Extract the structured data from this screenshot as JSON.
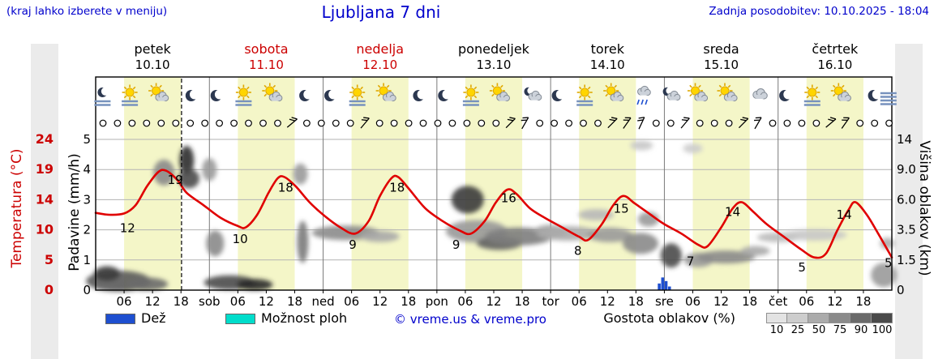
{
  "header": {
    "hint": "(kraj lahko izberete v meniju)",
    "title": "Ljubljana 7 dni",
    "updated": "Zadnja posodobitev: 10.10.2025 - 18:04"
  },
  "colors_ui": {
    "accent_blue": "#0000cc",
    "weekend_red": "#cc0000"
  },
  "days": [
    {
      "name": "petek",
      "date": "10.10",
      "color": "#000000"
    },
    {
      "name": "sobota",
      "date": "11.10",
      "color": "#cc0000"
    },
    {
      "name": "nedelja",
      "date": "12.10",
      "color": "#cc0000"
    },
    {
      "name": "ponedeljek",
      "date": "13.10",
      "color": "#000000"
    },
    {
      "name": "torek",
      "date": "14.10",
      "color": "#000000"
    },
    {
      "name": "sreda",
      "date": "15.10",
      "color": "#000000"
    },
    {
      "name": "četrtek",
      "date": "16.10",
      "color": "#000000"
    }
  ],
  "axes": {
    "temp_label": "Temperatura (°C)",
    "temp_ticks": [
      "24",
      "19",
      "14",
      "10",
      "5",
      "0"
    ],
    "precip_label": "Padavine (mm/h)",
    "precip_ticks": [
      "5",
      "4",
      "3",
      "2",
      "1",
      "0"
    ],
    "cloud_label": "Višina oblakov (km)",
    "cloud_ticks": [
      "14",
      "9.0",
      "6.0",
      "3.5",
      "1.5",
      "0"
    ]
  },
  "legend": {
    "rain": "Dež",
    "rain_color": "#1e4fd0",
    "showers": "Možnost ploh",
    "showers_color": "#00ddcb",
    "copyright": "© vreme.us & vreme.pro",
    "cloud_density": "Gostota oblakov (%)",
    "cloud_scale": [
      {
        "v": "10",
        "c": "#e3e3e3"
      },
      {
        "v": "25",
        "c": "#cdcdcd"
      },
      {
        "v": "50",
        "c": "#ababab"
      },
      {
        "v": "75",
        "c": "#8a8a8a"
      },
      {
        "v": "90",
        "c": "#6a6a6a"
      },
      {
        "v": "100",
        "c": "#4a4a4a"
      }
    ]
  },
  "chart_data": {
    "type": "line",
    "title": "Ljubljana 7 dni meteogram",
    "x_unit": "days from petek 10.10 00:00 (0–7)",
    "temp_axis": {
      "label": "Temperatura (°C)",
      "range": [
        0,
        24
      ],
      "ticks": [
        24,
        19,
        14,
        10,
        5,
        0
      ]
    },
    "precip_axis": {
      "label": "Padavine (mm/h)",
      "range": [
        0,
        5
      ],
      "ticks": [
        5,
        4,
        3,
        2,
        1,
        0
      ]
    },
    "cloud_axis": {
      "label": "Višina oblakov (km)",
      "ticks": [
        "14",
        "9.0",
        "6.0",
        "3.5",
        "1.5",
        "0"
      ]
    },
    "now_line_d": 0.755,
    "temperature": [
      [
        0,
        12.3
      ],
      [
        0.12,
        12
      ],
      [
        0.25,
        12.2
      ],
      [
        0.35,
        13.5
      ],
      [
        0.45,
        16.5
      ],
      [
        0.55,
        18.8
      ],
      [
        0.62,
        19
      ],
      [
        0.72,
        17.5
      ],
      [
        0.8,
        15.5
      ],
      [
        0.95,
        13.5
      ],
      [
        1.1,
        11.5
      ],
      [
        1.25,
        10.2
      ],
      [
        1.32,
        10
      ],
      [
        1.42,
        12
      ],
      [
        1.52,
        15.5
      ],
      [
        1.6,
        17.8
      ],
      [
        1.66,
        18
      ],
      [
        1.76,
        16.5
      ],
      [
        1.88,
        14
      ],
      [
        2,
        12
      ],
      [
        2.15,
        10
      ],
      [
        2.28,
        9
      ],
      [
        2.4,
        11
      ],
      [
        2.5,
        15
      ],
      [
        2.6,
        17.8
      ],
      [
        2.66,
        18
      ],
      [
        2.76,
        16
      ],
      [
        2.9,
        13
      ],
      [
        3.05,
        11
      ],
      [
        3.2,
        9.5
      ],
      [
        3.3,
        9
      ],
      [
        3.42,
        11
      ],
      [
        3.52,
        14
      ],
      [
        3.62,
        16
      ],
      [
        3.7,
        15.3
      ],
      [
        3.82,
        13
      ],
      [
        3.95,
        11.5
      ],
      [
        4.1,
        10
      ],
      [
        4.25,
        8.5
      ],
      [
        4.33,
        8
      ],
      [
        4.45,
        10.5
      ],
      [
        4.55,
        13.5
      ],
      [
        4.64,
        15
      ],
      [
        4.74,
        13.8
      ],
      [
        4.88,
        12
      ],
      [
        5,
        10.5
      ],
      [
        5.15,
        9
      ],
      [
        5.3,
        7.2
      ],
      [
        5.38,
        7
      ],
      [
        5.5,
        10
      ],
      [
        5.6,
        13
      ],
      [
        5.68,
        14
      ],
      [
        5.78,
        12.5
      ],
      [
        5.9,
        10.5
      ],
      [
        6.05,
        8.5
      ],
      [
        6.2,
        6.5
      ],
      [
        6.32,
        5.2
      ],
      [
        6.42,
        5.8
      ],
      [
        6.52,
        9.5
      ],
      [
        6.62,
        12.8
      ],
      [
        6.68,
        14
      ],
      [
        6.78,
        12
      ],
      [
        6.88,
        9
      ],
      [
        7,
        5.2
      ]
    ],
    "temp_labels": [
      {
        "v": "12",
        "d": 0.28,
        "g": 2.05
      },
      {
        "v": "19",
        "d": 0.7,
        "g": 3.65
      },
      {
        "v": "10",
        "d": 1.27,
        "g": 1.7
      },
      {
        "v": "18",
        "d": 1.67,
        "g": 3.4
      },
      {
        "v": "9",
        "d": 2.26,
        "g": 1.5
      },
      {
        "v": "18",
        "d": 2.65,
        "g": 3.4
      },
      {
        "v": "9",
        "d": 3.17,
        "g": 1.5
      },
      {
        "v": "16",
        "d": 3.63,
        "g": 3.05
      },
      {
        "v": "8",
        "d": 4.24,
        "g": 1.3
      },
      {
        "v": "15",
        "d": 4.62,
        "g": 2.7
      },
      {
        "v": "7",
        "d": 5.23,
        "g": 0.95
      },
      {
        "v": "14",
        "d": 5.6,
        "g": 2.6
      },
      {
        "v": "5",
        "d": 6.21,
        "g": 0.75
      },
      {
        "v": "14",
        "d": 6.58,
        "g": 2.5
      },
      {
        "v": "5",
        "d": 6.97,
        "g": 0.9
      }
    ],
    "x_ticks": [
      {
        "d": 0.25,
        "l": "06"
      },
      {
        "d": 0.5,
        "l": "12"
      },
      {
        "d": 0.75,
        "l": "18"
      },
      {
        "d": 1,
        "l": "sob"
      },
      {
        "d": 1.25,
        "l": "06"
      },
      {
        "d": 1.5,
        "l": "12"
      },
      {
        "d": 1.75,
        "l": "18"
      },
      {
        "d": 2,
        "l": "ned"
      },
      {
        "d": 2.25,
        "l": "06"
      },
      {
        "d": 2.5,
        "l": "12"
      },
      {
        "d": 2.75,
        "l": "18"
      },
      {
        "d": 3,
        "l": "pon"
      },
      {
        "d": 3.25,
        "l": "06"
      },
      {
        "d": 3.5,
        "l": "12"
      },
      {
        "d": 3.75,
        "l": "18"
      },
      {
        "d": 4,
        "l": "tor"
      },
      {
        "d": 4.25,
        "l": "06"
      },
      {
        "d": 4.5,
        "l": "12"
      },
      {
        "d": 4.75,
        "l": "18"
      },
      {
        "d": 5,
        "l": "sre"
      },
      {
        "d": 5.25,
        "l": "06"
      },
      {
        "d": 5.5,
        "l": "12"
      },
      {
        "d": 5.75,
        "l": "18"
      },
      {
        "d": 6,
        "l": "čet"
      },
      {
        "d": 6.25,
        "l": "06"
      },
      {
        "d": 6.5,
        "l": "12"
      },
      {
        "d": 6.75,
        "l": "18"
      }
    ],
    "rain_bars": [
      {
        "d": 4.955,
        "h": 0.22
      },
      {
        "d": 4.985,
        "h": 0.42
      },
      {
        "d": 5.015,
        "h": 0.3
      },
      {
        "d": 5.045,
        "h": 0.12
      }
    ],
    "clouds": [
      [
        0.2,
        0.3,
        40,
        13,
        "#5a5a5a"
      ],
      [
        0.1,
        0.55,
        16,
        9,
        "#3c3c3c"
      ],
      [
        0.45,
        0.2,
        26,
        8,
        "#6a6a6a"
      ],
      [
        0.6,
        3.9,
        13,
        16,
        "#8a8a8a"
      ],
      [
        0.8,
        4.3,
        9,
        18,
        "#2e2e2e"
      ],
      [
        0.82,
        3.7,
        13,
        12,
        "#4a4a4a"
      ],
      [
        1,
        4,
        9,
        14,
        "#9a9a9a"
      ],
      [
        1.05,
        1.55,
        11,
        16,
        "#8a8a8a"
      ],
      [
        1.18,
        0.25,
        32,
        9,
        "#4a4a4a"
      ],
      [
        1.4,
        0.18,
        22,
        7,
        "#2a2a2a"
      ],
      [
        1.8,
        3.85,
        9,
        13,
        "#9a9a9a"
      ],
      [
        1.82,
        1.6,
        7,
        26,
        "#7a7a7a"
      ],
      [
        2.2,
        1.9,
        42,
        9,
        "#8b8b8b"
      ],
      [
        2.5,
        1.78,
        24,
        7,
        "#a8a8a8"
      ],
      [
        3.27,
        3,
        20,
        17,
        "#3a3a3a"
      ],
      [
        3.35,
        1.95,
        38,
        14,
        "#999999"
      ],
      [
        3.55,
        1.55,
        28,
        8,
        "#5f5f5f"
      ],
      [
        3.72,
        1.78,
        42,
        11,
        "#7d7d7d"
      ],
      [
        4,
        1.95,
        20,
        8,
        "#9a9a9a"
      ],
      [
        4.15,
        1.88,
        38,
        9,
        "#ababab"
      ],
      [
        4.4,
        2.5,
        22,
        7,
        "#b8b8b8"
      ],
      [
        4.52,
        1.83,
        28,
        9,
        "#9a9a9a"
      ],
      [
        4.79,
        1.55,
        22,
        13,
        "#8a8a8a"
      ],
      [
        4.86,
        2.35,
        13,
        9,
        "#9a9a9a"
      ],
      [
        4.8,
        4.8,
        14,
        6,
        "#c8c8c8"
      ],
      [
        5.06,
        1.15,
        13,
        15,
        "#4a4a4a"
      ],
      [
        5.25,
        4.7,
        12,
        6,
        "#cccccc"
      ],
      [
        5.3,
        1,
        18,
        9,
        "#9a9a9a"
      ],
      [
        5.54,
        1.1,
        36,
        8,
        "#8a8a8a"
      ],
      [
        5.8,
        1.3,
        18,
        6,
        "#a8a8a8"
      ],
      [
        6,
        1.75,
        26,
        6,
        "#bababa"
      ],
      [
        6.32,
        1.83,
        40,
        7,
        "#c6c6c6"
      ],
      [
        6.93,
        0.5,
        16,
        15,
        "#9a9a9a"
      ],
      [
        6.96,
        1.55,
        9,
        7,
        "#ababab"
      ]
    ],
    "icons": [
      [
        0.06,
        "moon-fog"
      ],
      [
        0.3,
        "sun-fog"
      ],
      [
        0.56,
        "sun-cloud"
      ],
      [
        0.84,
        "moon"
      ],
      [
        1.06,
        "moon"
      ],
      [
        1.3,
        "sun-fog"
      ],
      [
        1.56,
        "sun-cloud"
      ],
      [
        1.84,
        "moon"
      ],
      [
        2.06,
        "moon"
      ],
      [
        2.3,
        "sun-fog"
      ],
      [
        2.56,
        "sun-cloud"
      ],
      [
        2.84,
        "moon"
      ],
      [
        3.06,
        "moon"
      ],
      [
        3.3,
        "sun-fog"
      ],
      [
        3.56,
        "sun-cloud"
      ],
      [
        3.84,
        "moon-cloud"
      ],
      [
        4.06,
        "moon"
      ],
      [
        4.3,
        "sun-fog"
      ],
      [
        4.56,
        "sun-cloud"
      ],
      [
        4.82,
        "cloud-rain"
      ],
      [
        5.06,
        "moon-cloud"
      ],
      [
        5.3,
        "sun-cloud"
      ],
      [
        5.56,
        "sun-cloud"
      ],
      [
        5.84,
        "cloud"
      ],
      [
        6.06,
        "moon"
      ],
      [
        6.3,
        "sun-fog"
      ],
      [
        6.56,
        "sun-cloud"
      ],
      [
        6.84,
        "moon"
      ],
      [
        6.97,
        "fog"
      ]
    ],
    "wind": {
      "start": 0.064,
      "step": 0.128,
      "count": 55,
      "barbs": [
        {
          "i": 13,
          "rot": 40
        },
        {
          "i": 18,
          "rot": 50
        },
        {
          "i": 28,
          "rot": 45
        },
        {
          "i": 29,
          "rot": 60
        },
        {
          "i": 35,
          "rot": 45
        },
        {
          "i": 36,
          "rot": 55
        },
        {
          "i": 37,
          "rot": 65
        },
        {
          "i": 40,
          "rot": 50
        },
        {
          "i": 44,
          "rot": 45
        },
        {
          "i": 45,
          "rot": 60
        },
        {
          "i": 50,
          "rot": 40
        },
        {
          "i": 51,
          "rot": 55
        }
      ]
    },
    "colors": {
      "temp": "#e00000",
      "temp_axis": "#cc0000",
      "rain": "#1e4fd0",
      "day_band": "#f4f6c8",
      "grid": "#b3b3b3",
      "separator": "#7a7a7a",
      "sun": "#ffd500",
      "sun_ray": "#e0a800",
      "cloud": "#ccd2da",
      "cloud_edge": "#828a94",
      "moon": "#2c3850",
      "fog": "#7792bd"
    }
  }
}
